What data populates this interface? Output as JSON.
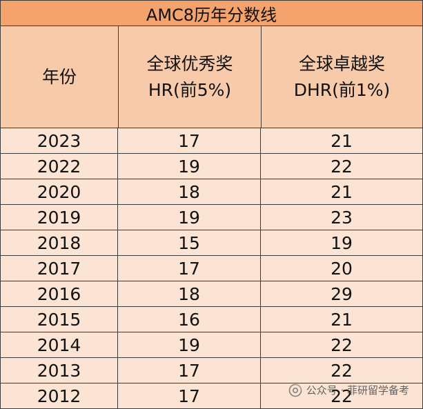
{
  "table": {
    "title": "AMC8历年分数线",
    "columns": [
      {
        "lines": [
          "年份"
        ]
      },
      {
        "lines": [
          "全球优秀奖",
          "HR(前5%)"
        ]
      },
      {
        "lines": [
          "全球卓越奖",
          "DHR(前1%)"
        ]
      }
    ],
    "rows": [
      {
        "year": "2023",
        "hr": "17",
        "dhr": "21"
      },
      {
        "year": "2022",
        "hr": "19",
        "dhr": "22"
      },
      {
        "year": "2020",
        "hr": "18",
        "dhr": "21"
      },
      {
        "year": "2019",
        "hr": "19",
        "dhr": "23"
      },
      {
        "year": "2018",
        "hr": "15",
        "dhr": "19"
      },
      {
        "year": "2017",
        "hr": "17",
        "dhr": "20"
      },
      {
        "year": "2016",
        "hr": "18",
        "dhr": "29"
      },
      {
        "year": "2015",
        "hr": "16",
        "dhr": "21"
      },
      {
        "year": "2014",
        "hr": "19",
        "dhr": "22"
      },
      {
        "year": "2013",
        "hr": "17",
        "dhr": "22"
      },
      {
        "year": "2012",
        "hr": "17",
        "dhr": "22"
      }
    ]
  },
  "watermark": {
    "text": "公众号 · 菲研留学备考",
    "icon": "wechat-official-account-icon"
  },
  "colors": {
    "title_bg": "#f3a36b",
    "header_bg": "#f7caa9",
    "row_bg": "#fbe4d3",
    "border": "#3a3a3a"
  }
}
